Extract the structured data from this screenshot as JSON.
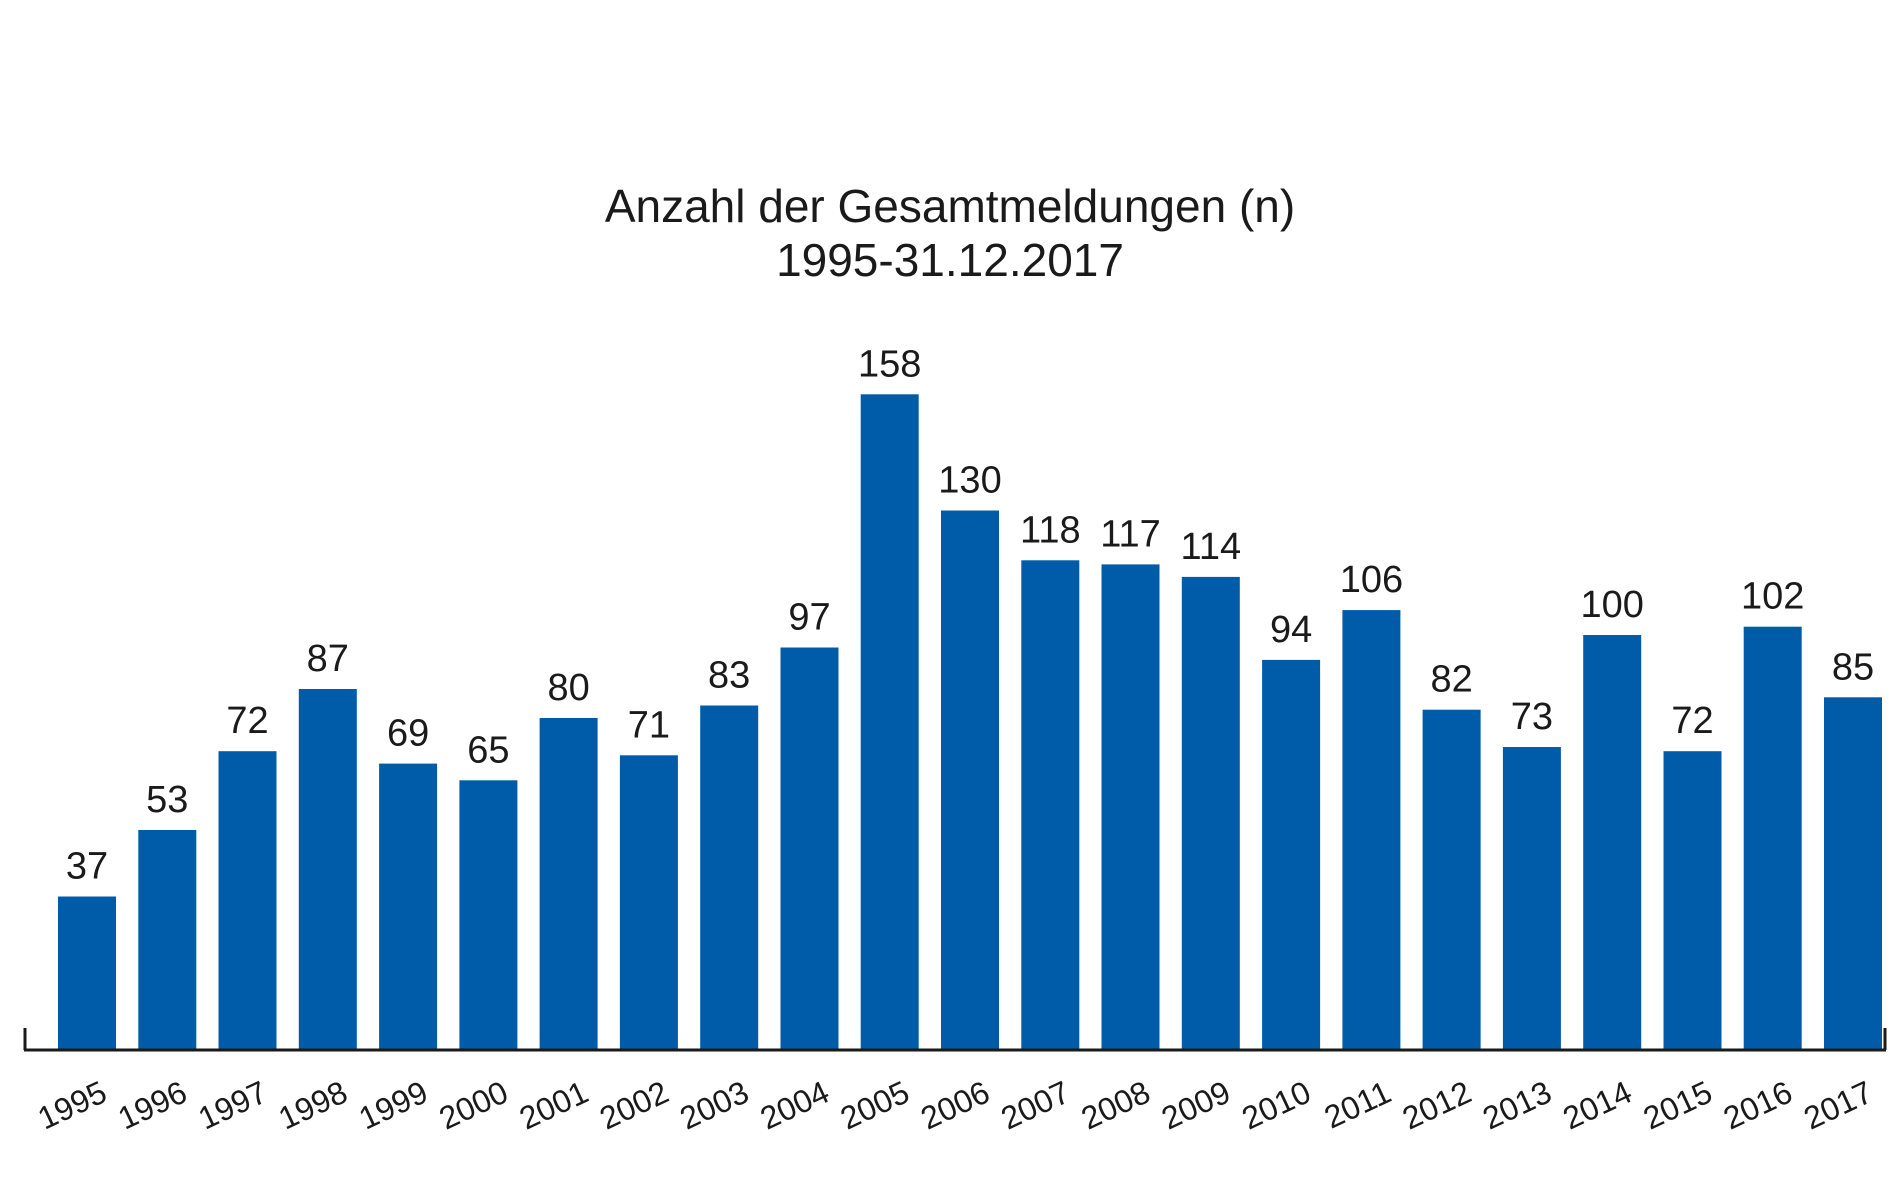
{
  "chart_data": {
    "type": "bar",
    "title": "Anzahl der Gesamtmeldungen (n)",
    "subtitle": "1995-31.12.2017",
    "xlabel": "",
    "ylabel": "",
    "categories": [
      "1995",
      "1996",
      "1997",
      "1998",
      "1999",
      "2000",
      "2001",
      "2002",
      "2003",
      "2004",
      "2005",
      "2006",
      "2007",
      "2008",
      "2009",
      "2010",
      "2011",
      "2012",
      "2013",
      "2014",
      "2015",
      "2016",
      "2017"
    ],
    "values": [
      37,
      53,
      72,
      87,
      69,
      65,
      80,
      71,
      83,
      97,
      158,
      130,
      118,
      117,
      114,
      94,
      106,
      82,
      73,
      100,
      72,
      102,
      85
    ],
    "ylim": [
      0,
      160
    ],
    "grid": false,
    "legend": "none",
    "bar_color": "#005ca9",
    "axis_color": "#1a1a1a"
  }
}
